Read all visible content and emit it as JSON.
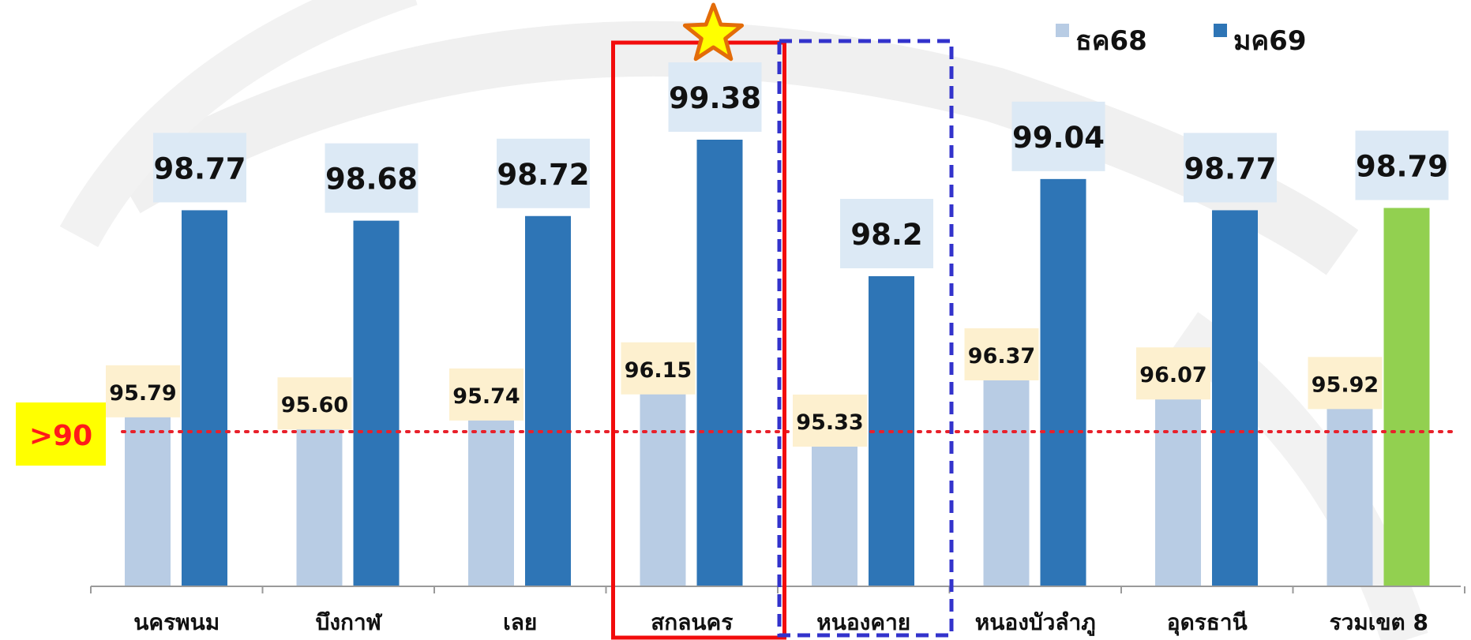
{
  "chart_data": {
    "type": "bar",
    "categories": [
      "นครพนม",
      "บึงกาฬ",
      "เลย",
      "สกลนคร",
      "หนองคาย",
      "หนองบัวลำภู",
      "อุดรธานี",
      "รวมเขต 8"
    ],
    "series": [
      {
        "name": "ธค68",
        "values": [
          95.79,
          95.6,
          95.74,
          96.15,
          95.33,
          96.37,
          96.07,
          95.92
        ],
        "labels": [
          "95.79",
          "95.60",
          "95.74",
          "96.15",
          "95.33",
          "96.37",
          "96.07",
          "95.92"
        ],
        "color": "#b8cce4"
      },
      {
        "name": "มค69",
        "values": [
          98.77,
          98.68,
          98.72,
          99.38,
          98.2,
          99.04,
          98.77,
          98.79
        ],
        "labels": [
          "98.77",
          "98.68",
          "98.72",
          "99.38",
          "98.2",
          "99.04",
          "98.77",
          "98.79"
        ],
        "color": "#2e75b6",
        "highlight_last_color": "#92d050"
      }
    ],
    "threshold": {
      "value": 90,
      "label": ">90",
      "color": "#e8202a"
    },
    "highlights": {
      "solid_box_category": "สกลนคร",
      "dashed_box_category": "หนองคาย",
      "star_category": "สกลนคร"
    },
    "colors": {
      "label_bg_light": "#fdf0cf",
      "label_bg_dark": "#dce9f5",
      "threshold_badge_bg": "#ffff00",
      "solid_box": "#f20c0c",
      "dashed_box": "#3333cc",
      "star_fill": "#ffff00",
      "star_stroke": "#e36c09"
    },
    "grid": false,
    "legend": "top-right"
  }
}
